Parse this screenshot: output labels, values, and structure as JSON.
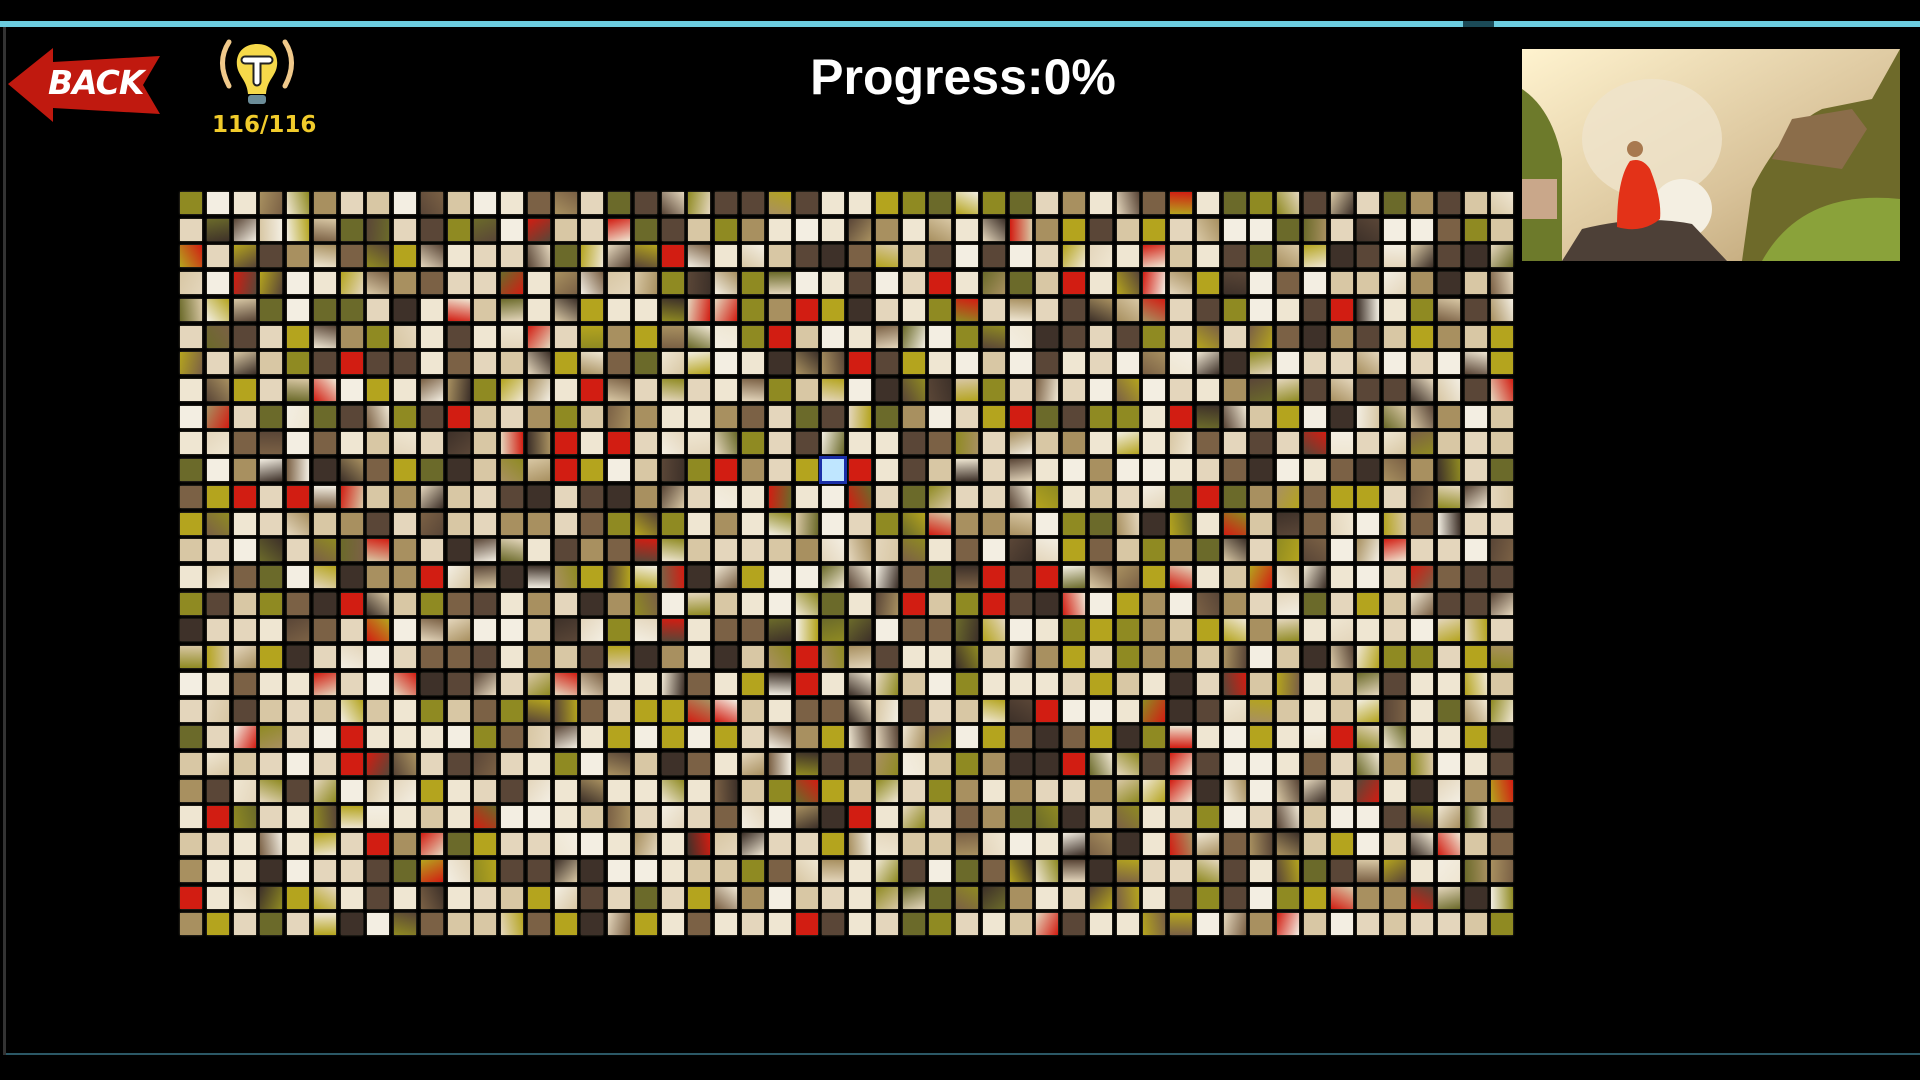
{
  "header": {
    "back_label": "BACK",
    "hint_count": "116/116",
    "progress_label": "Progress:0%"
  },
  "puzzle": {
    "columns": 50,
    "rows": 28,
    "progress_percent": 0,
    "selected_tile": {
      "column": 24,
      "row": 10
    },
    "colors": {
      "accent_bar": "#6ccde0",
      "back_arrow": "#c0190f",
      "hint_text": "#f1cb2b",
      "selected_tile": "#bfe6ff",
      "tile_palette": [
        "#e4d6bc",
        "#efe6d2",
        "#d8c7a4",
        "#5a4637",
        "#3e3129",
        "#b4a41e",
        "#8f8a22",
        "#6b6a2a",
        "#a89060",
        "#7b6145",
        "#d21d12",
        "#f3eee2"
      ]
    }
  },
  "preview": {
    "icon": "reference-image-monk-on-cliff"
  }
}
